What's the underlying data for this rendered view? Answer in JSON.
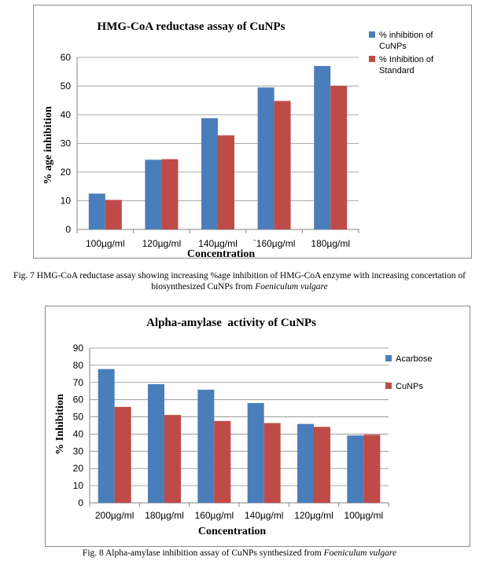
{
  "figures": [
    {
      "caption_prefix": "Fig. 7 HMG-CoA reductase assay showing increasing %age inhibition of HMG-CoA enzyme with increasing concertation of biosynthesized CuNPs from ",
      "caption_species": "Foeniculum vulgare"
    },
    {
      "caption_prefix": "Fig. 8 Alpha-amylase inhibition assay of CuNPs synthesized from ",
      "caption_species": "Foeniculum vulgare"
    }
  ],
  "chart_data": [
    {
      "type": "bar",
      "title": "HMG-CoA reductase assay of CuNPs",
      "xlabel": "Concentration",
      "ylabel": "% age inhibition",
      "categories": [
        "100µg/ml",
        "120µg/ml",
        "140µg/ml",
        "`160µg/ml",
        "180µg/ml"
      ],
      "ylim": [
        0,
        60
      ],
      "yticks": [
        0,
        10,
        20,
        30,
        40,
        50,
        60
      ],
      "grid": true,
      "legend_position": "right",
      "series": [
        {
          "name": "% inhibition of CuNPs",
          "legend_lines": [
            "% inhibition of",
            "CuNPs"
          ],
          "color": "#4a7ebb",
          "values": [
            12.5,
            24.3,
            38.8,
            49.5,
            57.0
          ]
        },
        {
          "name": "% Inhibition of Standard",
          "legend_lines": [
            "% Inhibition of",
            "Standard"
          ],
          "color": "#be4b48",
          "values": [
            10.3,
            24.5,
            32.8,
            44.8,
            50.1
          ]
        }
      ]
    },
    {
      "type": "bar",
      "title": "Alpha-amylase  activity of CuNPs",
      "xlabel": "Concentration",
      "ylabel": "% Inhibition",
      "categories": [
        "200µg/ml",
        "180µg/ml",
        "160µg/ml",
        "140µg/ml",
        "120µg/ml",
        "100µg/ml"
      ],
      "ylim": [
        0,
        90
      ],
      "yticks": [
        0,
        10,
        20,
        30,
        40,
        50,
        60,
        70,
        80,
        90
      ],
      "grid": true,
      "legend_position": "right",
      "series": [
        {
          "name": "Acarbose",
          "legend_lines": [
            "Acarbose"
          ],
          "color": "#4a7ebb",
          "values": [
            77.8,
            69.0,
            65.8,
            58.0,
            45.9,
            39.2
          ]
        },
        {
          "name": "CuNPs",
          "legend_lines": [
            "CuNPs"
          ],
          "color": "#be4b48",
          "values": [
            55.8,
            51.1,
            47.6,
            46.4,
            44.2,
            39.6
          ]
        }
      ]
    }
  ]
}
